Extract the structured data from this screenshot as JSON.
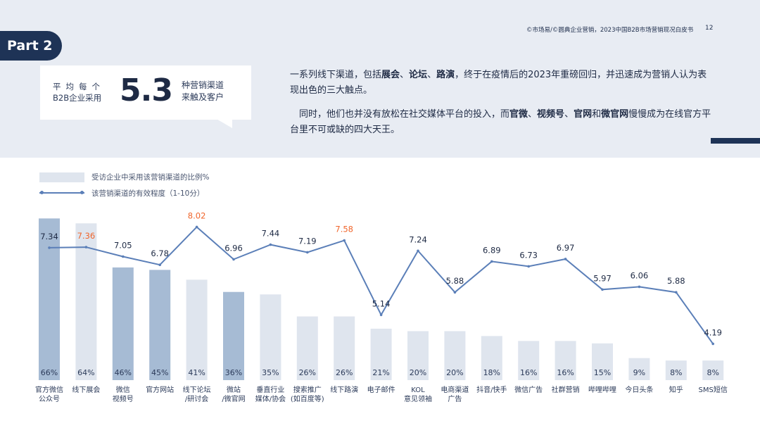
{
  "header": {
    "source_note": "©市场易/©圆典企业营销，2023中国B2B市场营销现况白皮书",
    "page_number": "12",
    "part_label": "Part 2"
  },
  "stat": {
    "left_line1": "平均每个",
    "left_line2": "B2B企业采用",
    "number": "5.3",
    "right_line1": "种营销渠道",
    "right_line2": "来触及客户"
  },
  "paragraphs": {
    "p1_a": "一系列线下渠道，包括",
    "p1_b1": "展会",
    "p1_s1": "、",
    "p1_b2": "论坛",
    "p1_s2": "、",
    "p1_b3": "路演",
    "p1_c": "，终于在疫情后的2023年重磅回归，并迅速成为营销人认为表现出色的三大触点。",
    "p2_a": "同时，他们也并没有放松在社交媒体平台的投入，而",
    "p2_b1": "官微",
    "p2_s1": "、",
    "p2_b2": "视频号",
    "p2_s2": "、",
    "p2_b3": "官网",
    "p2_s3": "和",
    "p2_b4": "微官网",
    "p2_c": "慢慢成为在线官方平台里不可或缺的四大天王。"
  },
  "legend": {
    "bar_label": "受访企业中采用该营销渠道的比例%",
    "line_label": "该营销渠道的有效程度（1-10分）"
  },
  "colors": {
    "bar_dark": "#a6bbd4",
    "bar_light": "#dfe5ee",
    "line": "#5b7fb8",
    "highlight": "#f0652b",
    "navy": "#1e3356",
    "band": "#e8ecf3"
  },
  "chart_data": {
    "type": "bar",
    "categories": [
      "官方微信公众号",
      "线下展会",
      "微信视频号",
      "官方网站",
      "线下论坛/研讨会",
      "微站/微官网",
      "垂直行业媒体/协会",
      "搜索推广(如百度等)",
      "线下路演",
      "电子邮件",
      "KOL意见领袖",
      "电商渠道广告",
      "抖音/快手",
      "微信广告",
      "社群营销",
      "哔哩哔哩",
      "今日头条",
      "知乎",
      "SMS短信"
    ],
    "category_lines": [
      [
        "官方微信",
        "公众号"
      ],
      [
        "线下展会"
      ],
      [
        "微信",
        "视频号"
      ],
      [
        "官方网站"
      ],
      [
        "线下论坛",
        "/研讨会"
      ],
      [
        "微站",
        "/微官网"
      ],
      [
        "垂直行业",
        "媒体/协会"
      ],
      [
        "搜索推广",
        "(如百度等)"
      ],
      [
        "线下路演"
      ],
      [
        "电子邮件"
      ],
      [
        "KOL",
        "意见领袖"
      ],
      [
        "电商渠道",
        "广告"
      ],
      [
        "抖音/快手"
      ],
      [
        "微信广告"
      ],
      [
        "社群营销"
      ],
      [
        "哔哩哔哩"
      ],
      [
        "今日头条"
      ],
      [
        "知乎"
      ],
      [
        "SMS短信"
      ]
    ],
    "series": [
      {
        "name": "受访企业中采用该营销渠道的比例%",
        "kind": "bar",
        "values": [
          66,
          64,
          46,
          45,
          41,
          36,
          35,
          26,
          26,
          21,
          20,
          20,
          18,
          16,
          16,
          15,
          9,
          8,
          8
        ],
        "labels": [
          "66%",
          "64%",
          "46%",
          "45%",
          "41%",
          "36%",
          "35%",
          "26%",
          "26%",
          "21%",
          "20%",
          "20%",
          "18%",
          "16%",
          "16%",
          "15%",
          "9%",
          "8%",
          "8%"
        ],
        "dark_bars": [
          0,
          2,
          3,
          5
        ]
      },
      {
        "name": "该营销渠道的有效程度（1-10分）",
        "kind": "line",
        "values": [
          7.34,
          7.36,
          7.05,
          6.78,
          8.02,
          6.96,
          7.44,
          7.19,
          7.58,
          5.14,
          7.24,
          5.88,
          6.89,
          6.73,
          6.97,
          5.97,
          6.06,
          5.88,
          4.19
        ],
        "labels": [
          "7.34",
          "7.36",
          "7.05",
          "6.78",
          "8.02",
          "6.96",
          "7.44",
          "7.19",
          "7.58",
          "5.14",
          "7.24",
          "5.88",
          "6.89",
          "6.73",
          "6.97",
          "5.97",
          "6.06",
          "5.88",
          "4.19"
        ],
        "highlighted": [
          1,
          4,
          8
        ]
      }
    ],
    "bar_ylim": [
      0,
      70
    ],
    "line_ylim": [
      3,
      9
    ],
    "legend_position": "top-left",
    "grid": false
  }
}
